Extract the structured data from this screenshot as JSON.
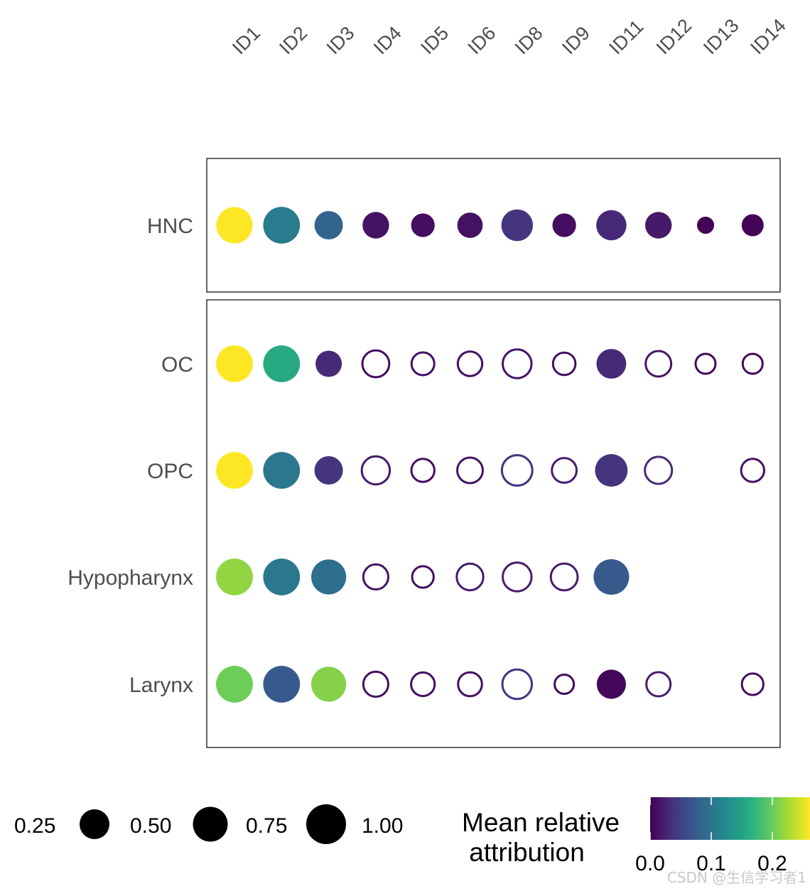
{
  "chart_data": {
    "type": "dot-matrix",
    "columns": [
      "ID1",
      "ID2",
      "ID3",
      "ID4",
      "ID5",
      "ID6",
      "ID8",
      "ID9",
      "ID11",
      "ID12",
      "ID13",
      "ID14"
    ],
    "panels": [
      {
        "rows": [
          {
            "label": "HNC",
            "size": [
              0.9,
              0.92,
              0.55,
              0.48,
              0.38,
              0.44,
              0.68,
              0.38,
              0.62,
              0.48,
              0.2,
              0.33
            ],
            "color": [
              0.265,
              0.11,
              0.085,
              0.013,
              0.01,
              0.012,
              0.04,
              0.01,
              0.03,
              0.018,
              0.002,
              0.003
            ],
            "filled": [
              true,
              true,
              true,
              true,
              true,
              true,
              true,
              true,
              true,
              true,
              true,
              true
            ]
          }
        ]
      },
      {
        "rows": [
          {
            "label": "OC",
            "size": [
              0.92,
              0.92,
              0.47,
              0.57,
              0.42,
              0.48,
              0.65,
              0.41,
              0.6,
              0.52,
              0.33,
              0.33
            ],
            "color": [
              0.29,
              0.16,
              0.03,
              0.01,
              0.01,
              0.01,
              0.015,
              0.01,
              0.03,
              0.015,
              0.005,
              0.005
            ],
            "filled": [
              true,
              true,
              true,
              false,
              false,
              false,
              false,
              false,
              true,
              false,
              false,
              false
            ]
          },
          {
            "label": "OPC",
            "size": [
              0.92,
              0.92,
              0.55,
              0.62,
              0.43,
              0.52,
              0.72,
              0.49,
              0.72,
              0.58,
              null,
              0.43
            ],
            "color": [
              0.275,
              0.105,
              0.04,
              0.02,
              0.01,
              0.012,
              0.04,
              0.02,
              0.04,
              0.03,
              null,
              0.012
            ],
            "filled": [
              true,
              true,
              true,
              false,
              false,
              false,
              false,
              false,
              true,
              false,
              null,
              false
            ]
          },
          {
            "label": "Hypopharynx",
            "size": [
              0.92,
              0.92,
              0.83,
              0.5,
              0.38,
              0.56,
              0.65,
              0.57,
              0.86,
              null,
              null,
              null
            ],
            "color": [
              0.22,
              0.105,
              0.095,
              0.015,
              0.01,
              0.02,
              0.02,
              0.02,
              0.075,
              null,
              null,
              null
            ],
            "filled": [
              true,
              true,
              true,
              false,
              false,
              false,
              false,
              false,
              true,
              null,
              null,
              null
            ]
          },
          {
            "label": "Larynx",
            "size": [
              0.92,
              0.92,
              0.83,
              0.5,
              0.45,
              0.46,
              0.68,
              0.31,
              0.58,
              0.47,
              null,
              0.38
            ],
            "color": [
              0.205,
              0.075,
              0.215,
              0.01,
              0.01,
              0.01,
              0.04,
              0.005,
              0.005,
              0.02,
              null,
              0.01
            ],
            "filled": [
              true,
              true,
              true,
              false,
              false,
              false,
              false,
              false,
              true,
              false,
              null,
              false
            ]
          }
        ]
      }
    ],
    "size_legend": {
      "values": [
        0.25,
        0.5,
        0.75,
        1.0
      ],
      "labels": [
        "0.25",
        "0.50",
        "0.75",
        "1.00"
      ]
    },
    "color_legend": {
      "title_line1": "Mean relative",
      "title_line2": " attribution",
      "ticks": [
        0.0,
        0.1,
        0.2
      ],
      "tick_labels": [
        "0.0",
        "0.1",
        "0.2"
      ],
      "range": [
        0.0,
        0.265
      ],
      "palette": "viridis"
    }
  },
  "watermark": "CSDN @生信学习者1"
}
